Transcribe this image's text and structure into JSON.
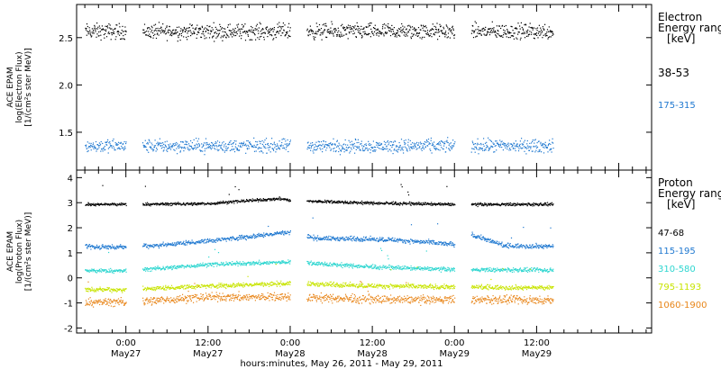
{
  "chart_data": [
    {
      "type": "scatter",
      "panel": "electron",
      "ylabel_lines": [
        "ACE EPAM",
        "log(Electron Flux)",
        "[1/(cm²s ster MeV)]"
      ],
      "ylim": [
        1.1,
        2.85
      ],
      "yticks": [
        1.5,
        2.0,
        2.5
      ],
      "ytick_labels": [
        "1.5",
        "2.0",
        "2.5"
      ],
      "legend": {
        "title_lines": [
          "Electron",
          "Energy range",
          "[keV]"
        ],
        "entries": [
          {
            "label": "38-53",
            "color": "#000000"
          },
          {
            "label": "175-315",
            "color": "#1f78d0"
          }
        ]
      },
      "series": [
        {
          "label": "38-53",
          "color": "#000000",
          "base": 2.57,
          "noise": 0.07,
          "ramp": []
        },
        {
          "label": "175-315",
          "color": "#1f78d0",
          "base": 1.36,
          "noise": 0.06,
          "ramp": []
        }
      ]
    },
    {
      "type": "scatter",
      "panel": "proton",
      "ylabel_lines": [
        "ACE EPAM",
        "log(Proton Flux)",
        "[1/(cm²s ster MeV)]"
      ],
      "ylim": [
        -2.2,
        4.3
      ],
      "yticks": [
        -2,
        -1,
        0,
        1,
        2,
        3,
        4
      ],
      "ytick_labels": [
        "-2",
        "-1",
        "0",
        "1",
        "2",
        "3",
        "4"
      ],
      "legend": {
        "title_lines": [
          "Proton",
          "Energy range",
          "[keV]"
        ],
        "entries": [
          {
            "label": "47-68",
            "color": "#000000"
          },
          {
            "label": "115-195",
            "color": "#1f78d0"
          },
          {
            "label": "310-580",
            "color": "#2ed6d0"
          },
          {
            "label": "795-1193",
            "color": "#c8e400"
          },
          {
            "label": "1060-1900",
            "color": "#e8861a"
          }
        ]
      },
      "series": [
        {
          "label": "47-68",
          "color": "#000000",
          "base": 3.0,
          "noise": 0.05,
          "ramp": [
            [
              0,
              2.95
            ],
            [
              0.5,
              2.98
            ],
            [
              0.7,
              3.08
            ],
            [
              0.95,
              3.18
            ],
            [
              1.0,
              3.1
            ],
            [
              1.5,
              3.0
            ],
            [
              2.0,
              2.95
            ],
            [
              3.0,
              2.95
            ]
          ]
        },
        {
          "label": "115-195",
          "color": "#1f78d0",
          "base": 1.3,
          "noise": 0.08,
          "ramp": [
            [
              0,
              1.25
            ],
            [
              0.25,
              1.35
            ],
            [
              0.5,
              1.5
            ],
            [
              0.65,
              1.6
            ],
            [
              1.0,
              1.85
            ],
            [
              1.15,
              1.6
            ],
            [
              1.6,
              1.55
            ],
            [
              1.8,
              1.45
            ],
            [
              2.0,
              1.35
            ],
            [
              2.1,
              1.75
            ],
            [
              2.3,
              1.3
            ],
            [
              3.0,
              1.25
            ]
          ]
        },
        {
          "label": "310-580",
          "color": "#2ed6d0",
          "base": 0.35,
          "noise": 0.07,
          "ramp": [
            [
              0,
              0.3
            ],
            [
              0.5,
              0.55
            ],
            [
              1.0,
              0.65
            ],
            [
              1.5,
              0.45
            ],
            [
              2.0,
              0.35
            ],
            [
              3.0,
              0.3
            ]
          ]
        },
        {
          "label": "795-1193",
          "color": "#c8e400",
          "base": -0.35,
          "noise": 0.08,
          "ramp": [
            [
              0,
              -0.45
            ],
            [
              0.5,
              -0.3
            ],
            [
              1.0,
              -0.2
            ],
            [
              1.5,
              -0.3
            ],
            [
              2.0,
              -0.35
            ],
            [
              3.0,
              -0.4
            ]
          ]
        },
        {
          "label": "1060-1900",
          "color": "#e8861a",
          "base": -0.85,
          "noise": 0.14,
          "ramp": [
            [
              0,
              -0.95
            ],
            [
              0.5,
              -0.75
            ],
            [
              1.0,
              -0.75
            ],
            [
              1.5,
              -0.85
            ],
            [
              2.0,
              -0.85
            ],
            [
              3.0,
              -0.9
            ]
          ]
        }
      ]
    }
  ],
  "time_axis": {
    "xlim_days": [
      -0.3,
      3.2
    ],
    "data_segments_days": [
      [
        -0.25,
        0.0
      ],
      [
        0.1,
        1.0
      ],
      [
        1.1,
        2.0
      ],
      [
        2.1,
        2.6
      ]
    ],
    "ticks": [
      {
        "day": 0.0,
        "time": "0:00",
        "date": "May27"
      },
      {
        "day": 0.5,
        "time": "12:00",
        "date": "May27"
      },
      {
        "day": 1.0,
        "time": "0:00",
        "date": "May28"
      },
      {
        "day": 1.5,
        "time": "12:00",
        "date": "May28"
      },
      {
        "day": 2.0,
        "time": "0:00",
        "date": "May29"
      },
      {
        "day": 2.5,
        "time": "12:00",
        "date": "May29"
      }
    ],
    "xlabel": "hours:minutes, May 26, 2011 - May 29, 2011"
  }
}
